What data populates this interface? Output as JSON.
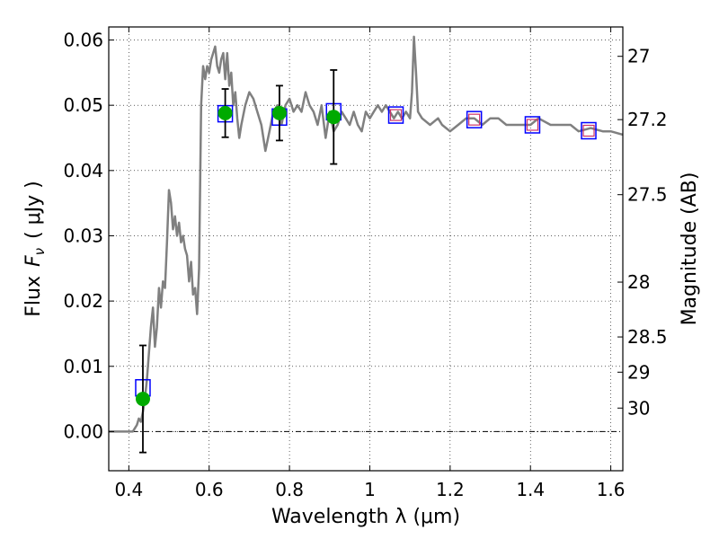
{
  "chart_data": {
    "type": "line",
    "xlabel": "Wavelength  λ (μm)",
    "ylabel_text": "Flux",
    "ylabel_math": "F",
    "ylabel_sub": "ν",
    "ylabel_unit": "( μJy )",
    "right_label": "Magnitude (AB)",
    "xlim": [
      0.35,
      1.63
    ],
    "ylim": [
      -0.006,
      0.062
    ],
    "grid": true,
    "x_ticks": [
      0.4,
      0.6,
      0.8,
      1.0,
      1.2,
      1.4,
      1.6
    ],
    "x_tick_labels": [
      "0.4",
      "0.6",
      "0.8",
      "1",
      "1.2",
      "1.4",
      "1.6"
    ],
    "y_ticks": [
      0.0,
      0.01,
      0.02,
      0.03,
      0.04,
      0.05,
      0.06
    ],
    "y_tick_labels": [
      "0.00",
      "0.01",
      "0.02",
      "0.03",
      "0.04",
      "0.05",
      "0.06"
    ],
    "mag_ticks": [
      {
        "label": "27",
        "flux": 0.0575
      },
      {
        "label": "27.2",
        "flux": 0.0478
      },
      {
        "label": "27.5",
        "flux": 0.0363
      },
      {
        "label": "28",
        "flux": 0.0229
      },
      {
        "label": "28.5",
        "flux": 0.0145
      },
      {
        "label": "29",
        "flux": 0.0091
      },
      {
        "label": "30",
        "flux": 0.0036
      }
    ],
    "series": [
      {
        "kind": "model-spectrum",
        "color": "#808080",
        "x": [
          0.35,
          0.41,
          0.415,
          0.42,
          0.425,
          0.43,
          0.435,
          0.44,
          0.445,
          0.45,
          0.455,
          0.46,
          0.465,
          0.47,
          0.475,
          0.48,
          0.485,
          0.49,
          0.495,
          0.5,
          0.505,
          0.51,
          0.515,
          0.52,
          0.525,
          0.53,
          0.535,
          0.54,
          0.545,
          0.55,
          0.555,
          0.56,
          0.565,
          0.57,
          0.575,
          0.58,
          0.585,
          0.59,
          0.595,
          0.6,
          0.605,
          0.61,
          0.615,
          0.62,
          0.625,
          0.63,
          0.635,
          0.64,
          0.645,
          0.65,
          0.655,
          0.66,
          0.665,
          0.67,
          0.675,
          0.68,
          0.69,
          0.7,
          0.71,
          0.72,
          0.73,
          0.74,
          0.75,
          0.76,
          0.77,
          0.78,
          0.79,
          0.8,
          0.81,
          0.82,
          0.83,
          0.84,
          0.85,
          0.86,
          0.87,
          0.88,
          0.89,
          0.9,
          0.91,
          0.92,
          0.93,
          0.94,
          0.95,
          0.96,
          0.97,
          0.98,
          0.99,
          1.0,
          1.01,
          1.02,
          1.03,
          1.04,
          1.05,
          1.06,
          1.07,
          1.08,
          1.09,
          1.1,
          1.105,
          1.11,
          1.115,
          1.12,
          1.13,
          1.15,
          1.17,
          1.18,
          1.2,
          1.22,
          1.24,
          1.26,
          1.28,
          1.3,
          1.32,
          1.34,
          1.36,
          1.38,
          1.4,
          1.42,
          1.45,
          1.48,
          1.5,
          1.52,
          1.55,
          1.58,
          1.6,
          1.63
        ],
        "y": [
          0.0,
          0.0,
          0.0005,
          0.001,
          0.002,
          0.0015,
          0.003,
          0.005,
          0.008,
          0.012,
          0.016,
          0.019,
          0.013,
          0.016,
          0.022,
          0.019,
          0.023,
          0.022,
          0.029,
          0.037,
          0.035,
          0.031,
          0.033,
          0.03,
          0.032,
          0.029,
          0.03,
          0.028,
          0.027,
          0.023,
          0.026,
          0.021,
          0.022,
          0.018,
          0.025,
          0.05,
          0.056,
          0.054,
          0.056,
          0.055,
          0.057,
          0.058,
          0.059,
          0.056,
          0.055,
          0.057,
          0.058,
          0.054,
          0.058,
          0.053,
          0.055,
          0.05,
          0.052,
          0.048,
          0.045,
          0.047,
          0.05,
          0.052,
          0.051,
          0.049,
          0.047,
          0.043,
          0.046,
          0.049,
          0.05,
          0.047,
          0.05,
          0.051,
          0.049,
          0.05,
          0.049,
          0.052,
          0.05,
          0.049,
          0.047,
          0.05,
          0.045,
          0.049,
          0.046,
          0.047,
          0.049,
          0.048,
          0.047,
          0.049,
          0.047,
          0.046,
          0.049,
          0.048,
          0.049,
          0.05,
          0.049,
          0.05,
          0.049,
          0.048,
          0.049,
          0.048,
          0.049,
          0.048,
          0.052,
          0.0605,
          0.055,
          0.049,
          0.048,
          0.047,
          0.048,
          0.047,
          0.046,
          0.047,
          0.048,
          0.048,
          0.047,
          0.048,
          0.048,
          0.047,
          0.047,
          0.047,
          0.047,
          0.048,
          0.047,
          0.047,
          0.047,
          0.046,
          0.0465,
          0.046,
          0.046,
          0.0455
        ]
      },
      {
        "kind": "model-photometry",
        "marker": "square",
        "color": "#0000ff",
        "x": [
          0.435,
          0.64,
          0.775,
          0.91,
          1.065,
          1.26,
          1.405,
          1.545
        ],
        "y": [
          0.0067,
          0.0487,
          0.0482,
          0.049,
          0.0485,
          0.0478,
          0.047,
          0.0461
        ]
      },
      {
        "kind": "observed-upper",
        "marker": "square",
        "color": "#cc3366",
        "x": [
          1.065,
          1.26,
          1.405,
          1.545
        ],
        "y": [
          0.0485,
          0.0478,
          0.047,
          0.0461
        ]
      },
      {
        "kind": "observed",
        "marker": "circle",
        "color": "#00aa00",
        "x": [
          0.435,
          0.64,
          0.775,
          0.91
        ],
        "y": [
          0.005,
          0.0488,
          0.0488,
          0.0482
        ],
        "yerr": [
          0.0082,
          0.0037,
          0.0042,
          0.0072
        ]
      }
    ]
  }
}
